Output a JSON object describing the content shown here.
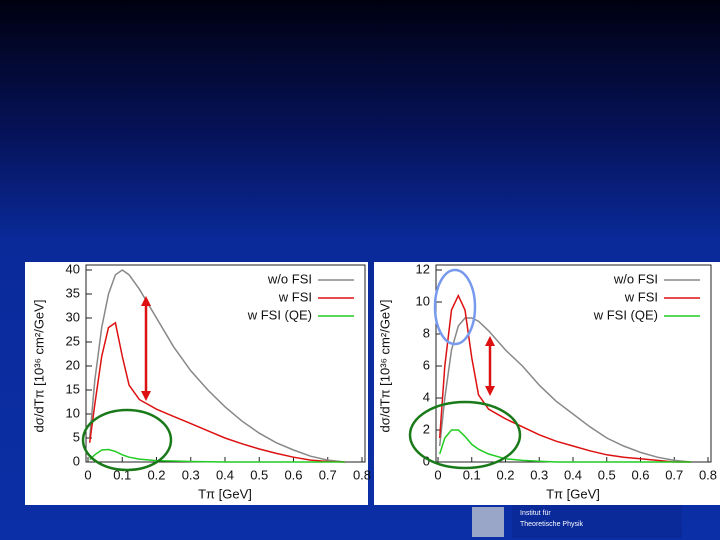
{
  "chart_data": [
    {
      "type": "line",
      "ylabel": "dσ/dTπ [10³⁶ cm²/GeV]",
      "xlabel": "Tπ [GeV]",
      "x": [
        0.005,
        0.02,
        0.04,
        0.06,
        0.08,
        0.1,
        0.12,
        0.15,
        0.2,
        0.25,
        0.3,
        0.35,
        0.4,
        0.45,
        0.5,
        0.55,
        0.6,
        0.65,
        0.7,
        0.75
      ],
      "series": [
        {
          "name": "w/o FSI",
          "color": "#888888",
          "values": [
            5,
            17,
            28,
            35,
            39,
            40,
            39,
            36,
            30,
            24,
            19,
            15,
            11.5,
            8.5,
            6,
            4,
            2.5,
            1.2,
            0.4,
            0
          ]
        },
        {
          "name": "w FSI",
          "color": "#dd1111",
          "values": [
            4,
            12,
            22,
            28,
            29,
            22,
            16,
            13,
            11,
            9.5,
            8,
            6.5,
            5,
            3.8,
            2.7,
            1.8,
            1,
            0.4,
            0.1,
            0
          ]
        },
        {
          "name": "w FSI (QE)",
          "color": "#22cc22",
          "values": [
            0.5,
            1.5,
            2.5,
            2.6,
            2.2,
            1.5,
            1,
            0.6,
            0.3,
            0.2,
            0.1,
            0.05,
            0,
            0,
            0,
            0,
            0,
            0,
            0,
            0
          ]
        }
      ],
      "xlim": [
        0,
        0.8
      ],
      "xticks": [
        0,
        0.1,
        0.2,
        0.3,
        0.4,
        0.5,
        0.6,
        0.7,
        0.8
      ],
      "ylim": [
        0,
        40
      ],
      "yticks": [
        0,
        5,
        10,
        15,
        20,
        25,
        30,
        35,
        40
      ],
      "legend": "upper right"
    },
    {
      "type": "line",
      "ylabel": "dσ/dTπ [10³⁶ cm²/GeV]",
      "xlabel": "Tπ [GeV]",
      "x": [
        0.005,
        0.02,
        0.04,
        0.06,
        0.08,
        0.1,
        0.12,
        0.15,
        0.2,
        0.25,
        0.3,
        0.35,
        0.4,
        0.45,
        0.5,
        0.55,
        0.6,
        0.65,
        0.7,
        0.75
      ],
      "series": [
        {
          "name": "w/o FSI",
          "color": "#888888",
          "values": [
            1,
            4,
            7,
            8.5,
            9,
            9,
            8.8,
            8.2,
            7,
            6,
            4.8,
            3.8,
            3,
            2.2,
            1.5,
            1,
            0.6,
            0.3,
            0.1,
            0
          ]
        },
        {
          "name": "w FSI",
          "color": "#dd1111",
          "values": [
            1.5,
            6,
            9.5,
            10.4,
            9.5,
            6.5,
            4.2,
            3.3,
            2.7,
            2.2,
            1.7,
            1.3,
            1,
            0.7,
            0.45,
            0.3,
            0.2,
            0.1,
            0,
            0
          ]
        },
        {
          "name": "w FSI (QE)",
          "color": "#22cc22",
          "values": [
            0.5,
            1.5,
            2,
            2,
            1.6,
            1.1,
            0.8,
            0.5,
            0.2,
            0.1,
            0.05,
            0,
            0,
            0,
            0,
            0,
            0,
            0,
            0,
            0
          ]
        }
      ],
      "xlim": [
        0,
        0.8
      ],
      "xticks": [
        0,
        0.1,
        0.2,
        0.3,
        0.4,
        0.5,
        0.6,
        0.7,
        0.8
      ],
      "ylim": [
        0,
        12
      ],
      "yticks": [
        0,
        2,
        4,
        6,
        8,
        10,
        12
      ],
      "legend": "upper right"
    }
  ],
  "footer": {
    "institute": [
      "Institut für",
      "Theoretische Physik"
    ]
  }
}
